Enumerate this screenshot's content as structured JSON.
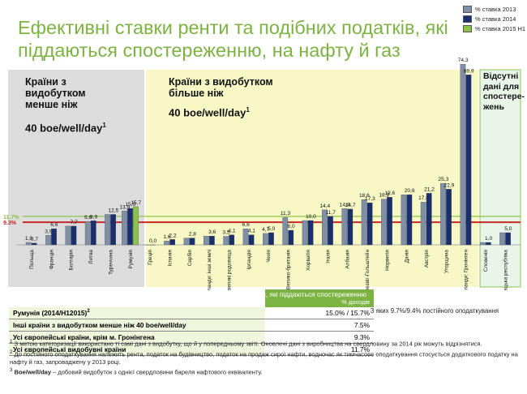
{
  "title": "Ефективні ставки ренти та подібних податків, які піддаються спостереженню, на нафту й газ",
  "legend": [
    {
      "label": "% ставка 2013",
      "color": "#7f8fa8"
    },
    {
      "label": "% ставка 2014",
      "color": "#1a2f6e"
    },
    {
      "label": "% ставка 2015 Н1",
      "color": "#8bc34a"
    }
  ],
  "panels": {
    "left_label": "Країни з видобутком менше ніж",
    "left_sub": "40 boe/well/day",
    "left_sup": "1",
    "middle_label": "Країни з видобутком більше ніж",
    "middle_sub": "40 boe/well/day",
    "middle_sup": "1",
    "right_label": "Відсутні дані для спостере-жень"
  },
  "ref_lines": [
    {
      "label": "11.7%",
      "value": 11.7,
      "color": "#8bc34a"
    },
    {
      "label": "9.3%",
      "value": 9.3,
      "color": "#c62828"
    }
  ],
  "chart_data": {
    "type": "bar",
    "title": "Ефективні ставки ренти та подібних податків, які піддаються спостереженню, на нафту й газ",
    "ylim": [
      0,
      75
    ],
    "series_names": [
      "% ставка 2013",
      "% ставка 2014",
      "% ставка 2015 Н1"
    ],
    "categories": [
      {
        "name": "Польща",
        "panel": "left",
        "values": [
          1.0,
          0.7,
          null
        ],
        "labels": [
          "1,0",
          "0,7",
          ""
        ]
      },
      {
        "name": "Франція",
        "panel": "left",
        "values": [
          3.9,
          6.6,
          null
        ],
        "labels": [
          "3,9",
          "6,6",
          ""
        ]
      },
      {
        "name": "Болгарія",
        "panel": "left",
        "values": [
          7.7,
          7.7,
          null
        ],
        "labels": [
          "",
          "7,7",
          ""
        ]
      },
      {
        "name": "Литва",
        "panel": "left",
        "values": [
          9.6,
          9.9,
          null
        ],
        "labels": [
          "9,6",
          "9,9",
          ""
        ]
      },
      {
        "name": "Туреччина",
        "panel": "left",
        "values": [
          12.5,
          12.5,
          null
        ],
        "labels": [
          "",
          "12,5",
          ""
        ]
      },
      {
        "name": "Румунія",
        "panel": "left",
        "values": [
          13.9,
          15.0,
          15.7
        ],
        "labels": [
          "13,9",
          "15,0",
          "15,7"
        ]
      },
      {
        "name": "Греція",
        "panel": "middle",
        "values": [
          0.0,
          0.0,
          null
        ],
        "labels": [
          "",
          "0,0",
          ""
        ]
      },
      {
        "name": "Іспанія",
        "panel": "middle",
        "values": [
          1.6,
          2.2,
          null
        ],
        "labels": [
          "1,6",
          "2,2",
          ""
        ]
      },
      {
        "name": "Сербія",
        "panel": "middle",
        "values": [
          2.8,
          2.8,
          null
        ],
        "labels": [
          "",
          "2,8",
          ""
        ]
      },
      {
        "name": "Нідерланди: інші землі",
        "panel": "middle",
        "values": [
          3.6,
          3.6,
          null
        ],
        "labels": [
          "",
          "3,6",
          ""
        ]
      },
      {
        "name": "Нідерланди: невеликі родовища",
        "panel": "middle",
        "values": [
          3.5,
          4.1,
          null
        ],
        "labels": [
          "3,5",
          "4,1",
          ""
        ]
      },
      {
        "name": "Ірландія",
        "panel": "middle",
        "values": [
          6.6,
          4.1,
          null
        ],
        "labels": [
          "6,6",
          "4,1",
          ""
        ]
      },
      {
        "name": "Чехія",
        "panel": "middle",
        "values": [
          4.7,
          5.0,
          null
        ],
        "labels": [
          "4,7",
          "5,0",
          ""
        ]
      },
      {
        "name": "Велико-британія",
        "panel": "middle",
        "values": [
          11.3,
          6.0,
          null
        ],
        "labels": [
          "11,3",
          "6,0",
          ""
        ]
      },
      {
        "name": "Хорватія",
        "panel": "middle",
        "values": [
          10.0,
          10.0,
          null
        ],
        "labels": [
          "",
          "10,0",
          ""
        ]
      },
      {
        "name": "Італія",
        "panel": "middle",
        "values": [
          14.4,
          11.7,
          null
        ],
        "labels": [
          "14,4",
          "11,7",
          ""
        ]
      },
      {
        "name": "Албанія",
        "panel": "middle",
        "values": [
          14.9,
          14.7,
          null
        ],
        "labels": [
          "14,9",
          "14,7",
          ""
        ]
      },
      {
        "name": "Німеччина: Шлезвіг-Гольштейн",
        "panel": "middle",
        "values": [
          18.6,
          17.3,
          null
        ],
        "labels": [
          "18,6",
          "17,3",
          ""
        ]
      },
      {
        "name": "Норвегія",
        "panel": "middle",
        "values": [
          18.8,
          19.6,
          null
        ],
        "labels": [
          "18,8",
          "19,6",
          ""
        ]
      },
      {
        "name": "Данія",
        "panel": "middle",
        "values": [
          20.6,
          20.6,
          null
        ],
        "labels": [
          "",
          "20,6",
          ""
        ]
      },
      {
        "name": "Австрія",
        "panel": "middle",
        "values": [
          17.6,
          21.2,
          null
        ],
        "labels": [
          "17,6",
          "21,2",
          ""
        ]
      },
      {
        "name": "Угорщина",
        "panel": "middle",
        "values": [
          25.3,
          22.9,
          null
        ],
        "labels": [
          "25,3",
          "22,9",
          ""
        ]
      },
      {
        "name": "Нідерланди: Гронінген",
        "panel": "middle",
        "values": [
          74.3,
          69.9,
          null
        ],
        "labels": [
          "74,3",
          "69,9",
          ""
        ]
      },
      {
        "name": "Словенія",
        "panel": "right",
        "values": [
          1.0,
          1.0,
          null
        ],
        "labels": [
          "",
          "1,0",
          ""
        ]
      },
      {
        "name": "Словацька республіка",
        "panel": "right",
        "values": [
          5.0,
          5.0,
          null
        ],
        "labels": [
          "",
          "5,0",
          ""
        ]
      }
    ]
  },
  "table": {
    "header": "Ефективні ставки податків, які піддаються спостереженню",
    "header_unit": "% доходів",
    "rows": [
      {
        "label": "Румунія (2014/Н12015)",
        "sup": "2",
        "value": "15.0% / 15.7%"
      },
      {
        "label": "Інші країни з видобутком менше ніж 40 boe/well/day",
        "sup": "",
        "value": "7.5%"
      },
      {
        "label": "Усі європейські країни, крім м. Гронінгена",
        "sup": "",
        "value": "9.3%"
      },
      {
        "label": "Усі європейські видобувні країни",
        "sup": "",
        "value": "11.7%"
      }
    ],
    "side_note": "- З яких 9.7%/9.4% постійного оподаткування"
  },
  "footnotes": [
    {
      "num": "1",
      "text": "З метою категоризації використано ті самі дані з видобутку, що й у попередньому звіті. Оновлені дані з виробництва на свердловину за 2014 рік можуть відрізнятися."
    },
    {
      "num": "2",
      "text": "До постійного оподаткування належить рента, податок на будівництво, податок на продаж сирої нафти, водночас як тимчасове оподаткування стосується додаткового податку на нафту й газ, запроваджену у 2013 році."
    },
    {
      "num": "3",
      "bold": "Boe/well/day",
      "text": " – добовий видобуток з однієї свердловини бареля нафтового еквіваленту."
    }
  ]
}
